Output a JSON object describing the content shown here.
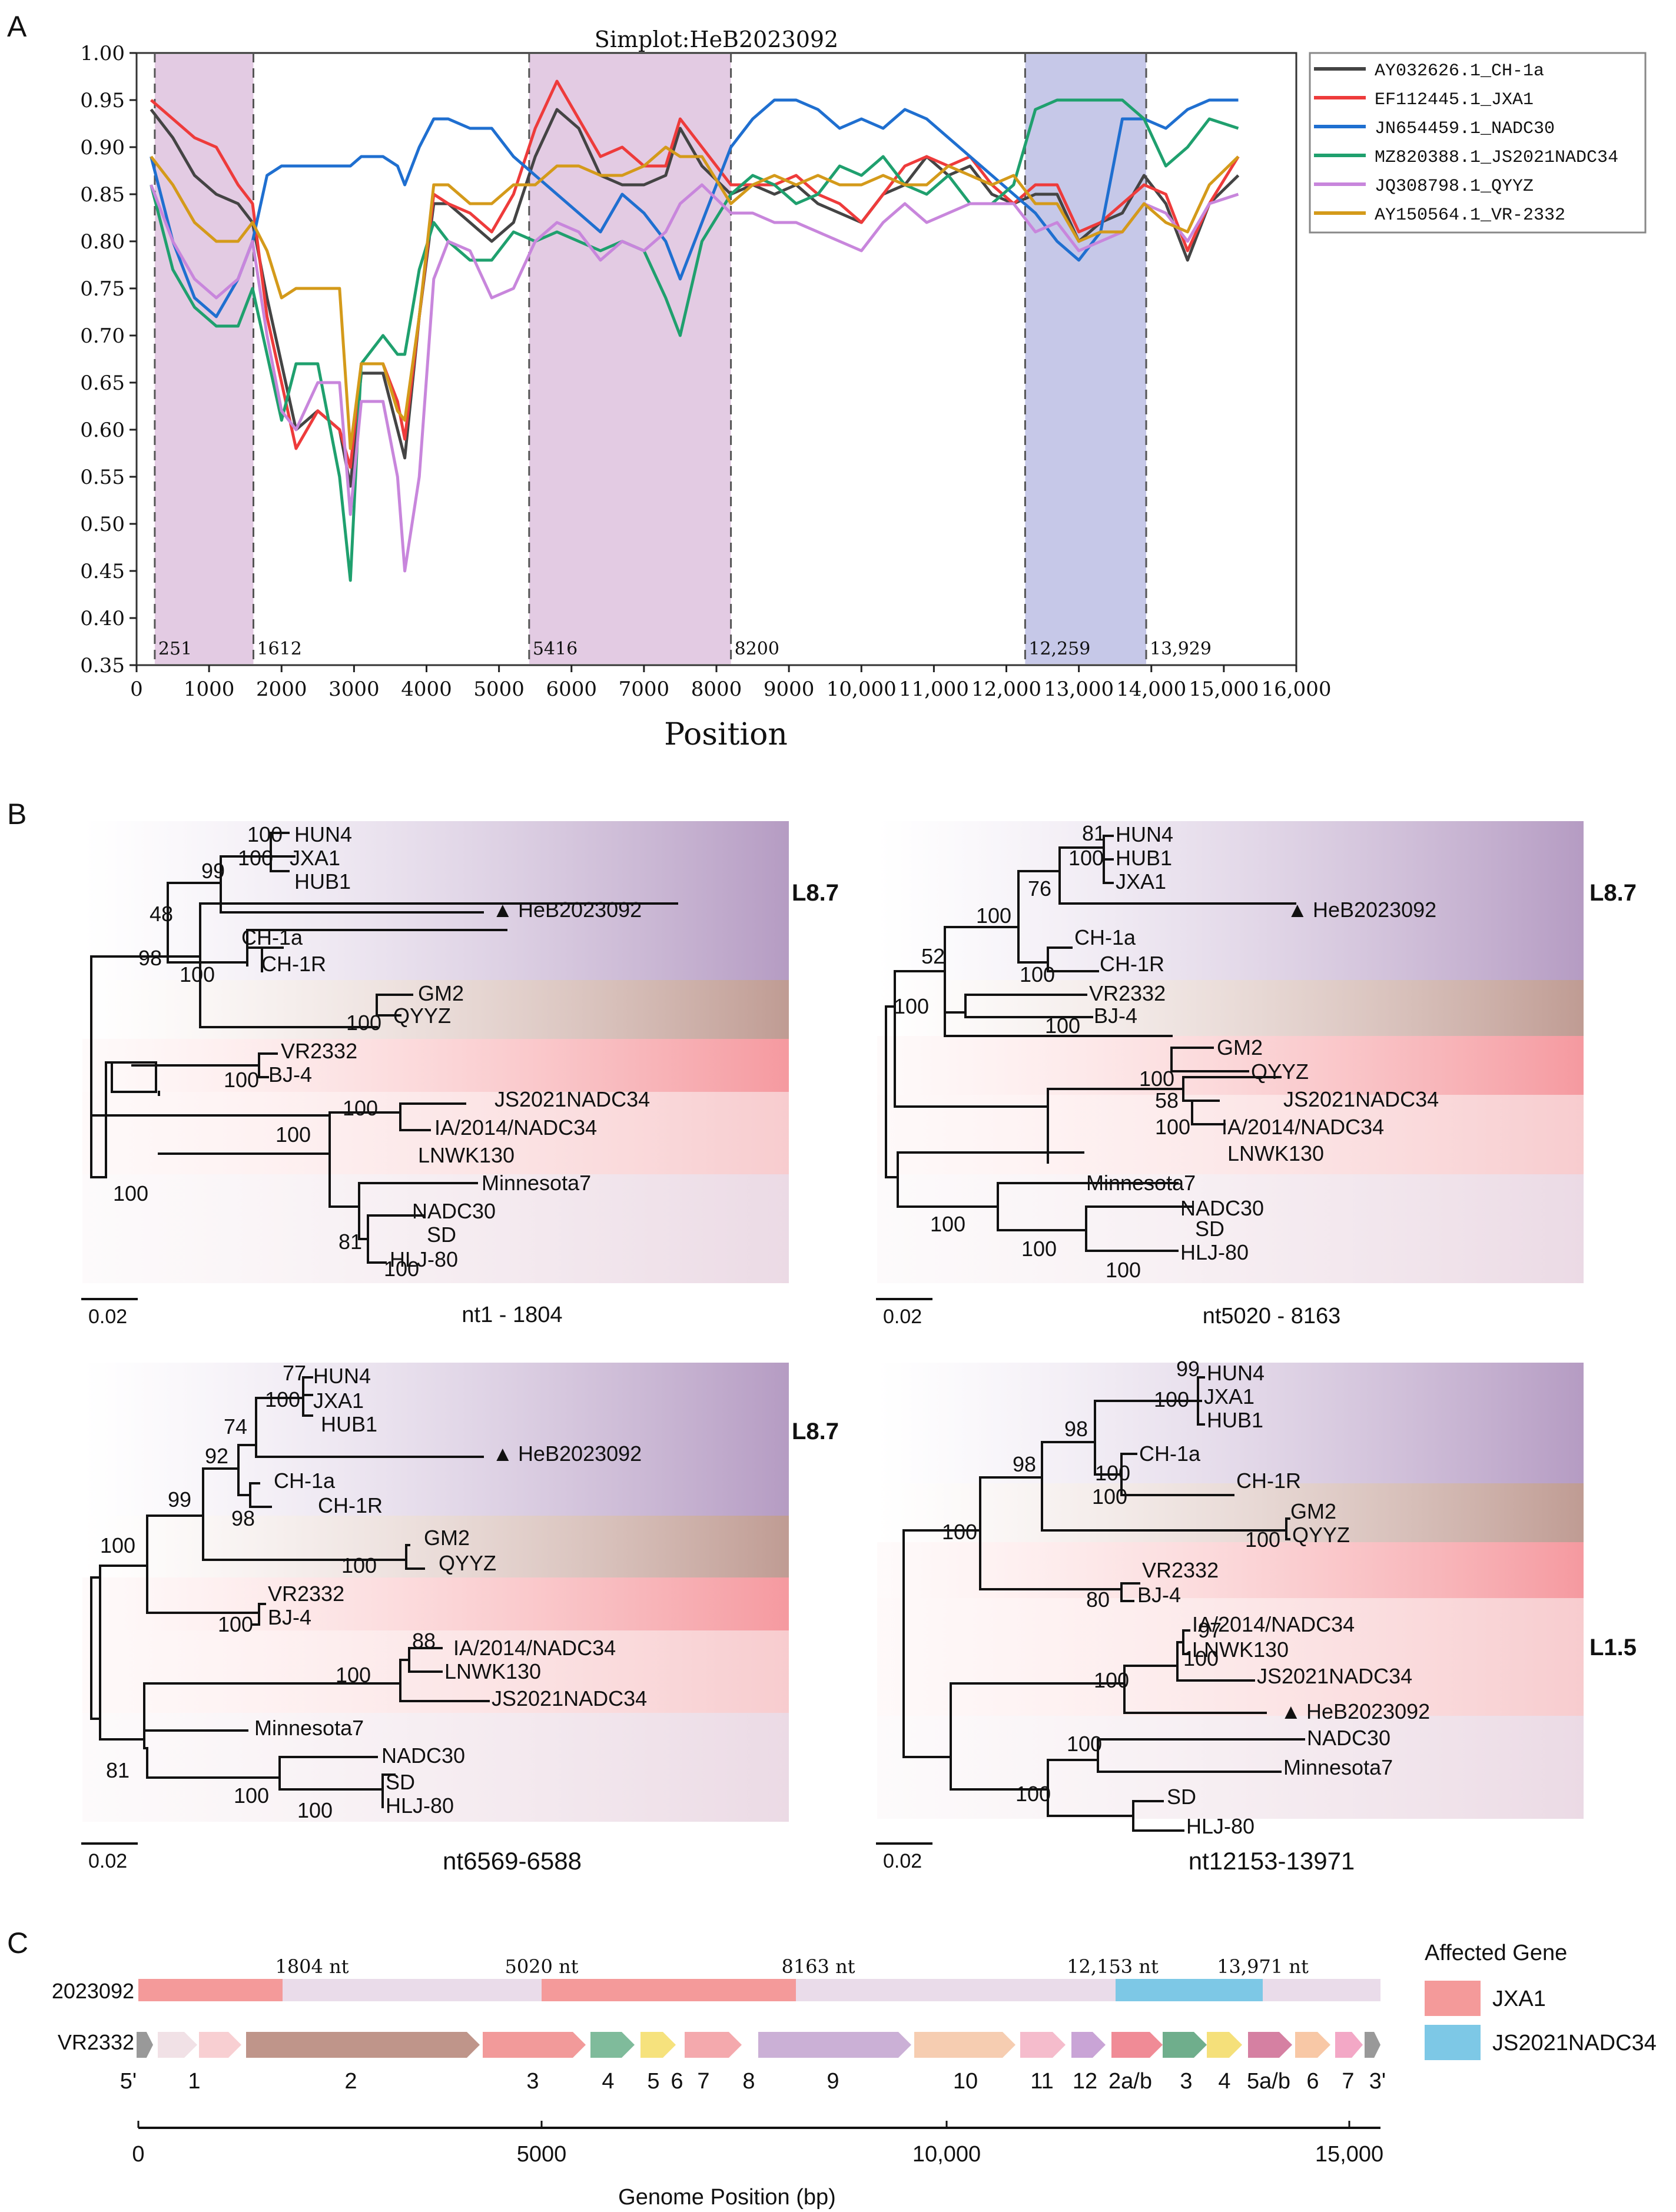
{
  "panel_labels": [
    "A",
    "B",
    "C"
  ],
  "panelA": {
    "chart_data": {
      "type": "line",
      "title": "Simplot:HeB2023092",
      "xlabel": "Position",
      "ylabel": "",
      "xlim": [
        0,
        16000
      ],
      "ylim": [
        0.35,
        1.0
      ],
      "xticks": [
        0,
        1000,
        2000,
        3000,
        4000,
        5000,
        6000,
        7000,
        8000,
        9000,
        10000,
        11000,
        12000,
        13000,
        14000,
        15000,
        16000
      ],
      "xtick_labels": [
        "0",
        "1000",
        "2000",
        "3000",
        "4000",
        "5000",
        "6000",
        "7000",
        "8000",
        "9000",
        "10,000",
        "11,000",
        "12,000",
        "13,000",
        "14,000",
        "15,000",
        "16,000"
      ],
      "yticks": [
        0.35,
        0.4,
        0.45,
        0.5,
        0.55,
        0.6,
        0.65,
        0.7,
        0.75,
        0.8,
        0.85,
        0.9,
        0.95,
        1.0
      ],
      "ytick_labels": [
        "0.35",
        "0.40",
        "0.45",
        "0.50",
        "0.55",
        "0.60",
        "0.65",
        "0.70",
        "0.75",
        "0.80",
        "0.85",
        "0.90",
        "0.95",
        "1.00"
      ],
      "breakpoints": [
        {
          "x": 251,
          "label": "251"
        },
        {
          "x": 1612,
          "label": "1612"
        },
        {
          "x": 5416,
          "label": "5416"
        },
        {
          "x": 8200,
          "label": "8200"
        },
        {
          "x": 12259,
          "label": "12,259"
        },
        {
          "x": 13929,
          "label": "13,929"
        }
      ],
      "shaded_regions": [
        {
          "from": 251,
          "to": 1612,
          "color": "#e3cbe3"
        },
        {
          "from": 5416,
          "to": 8200,
          "color": "#e3cbe3"
        },
        {
          "from": 12259,
          "to": 13929,
          "color": "#c6c8e8"
        }
      ],
      "legend_position": "top-right",
      "x": [
        200,
        500,
        800,
        1100,
        1400,
        1600,
        1800,
        2000,
        2200,
        2500,
        2800,
        2950,
        3100,
        3400,
        3600,
        3700,
        3900,
        4100,
        4300,
        4600,
        4900,
        5200,
        5500,
        5800,
        6100,
        6400,
        6700,
        7000,
        7300,
        7500,
        7800,
        8200,
        8500,
        8800,
        9100,
        9400,
        9700,
        10000,
        10300,
        10600,
        10900,
        11200,
        11500,
        11800,
        12100,
        12400,
        12700,
        13000,
        13300,
        13600,
        13900,
        14200,
        14500,
        14800,
        15200
      ],
      "series": [
        {
          "name": "AY032626.1_CH-1a",
          "color": "#444444",
          "values": [
            0.94,
            0.91,
            0.87,
            0.85,
            0.84,
            0.82,
            0.74,
            0.67,
            0.6,
            0.62,
            0.6,
            0.54,
            0.66,
            0.66,
            0.6,
            0.57,
            0.72,
            0.84,
            0.84,
            0.82,
            0.8,
            0.82,
            0.89,
            0.94,
            0.92,
            0.87,
            0.86,
            0.86,
            0.87,
            0.92,
            0.88,
            0.85,
            0.86,
            0.85,
            0.86,
            0.84,
            0.83,
            0.82,
            0.85,
            0.86,
            0.89,
            0.87,
            0.88,
            0.85,
            0.84,
            0.85,
            0.85,
            0.8,
            0.82,
            0.83,
            0.87,
            0.84,
            0.78,
            0.84,
            0.87
          ]
        },
        {
          "name": "EF112445.1_JXA1",
          "color": "#ee3b3b",
          "values": [
            0.95,
            0.93,
            0.91,
            0.9,
            0.86,
            0.84,
            0.72,
            0.65,
            0.58,
            0.62,
            0.6,
            0.56,
            0.67,
            0.67,
            0.63,
            0.59,
            0.72,
            0.85,
            0.84,
            0.83,
            0.81,
            0.85,
            0.92,
            0.97,
            0.93,
            0.89,
            0.9,
            0.88,
            0.88,
            0.93,
            0.9,
            0.86,
            0.86,
            0.86,
            0.87,
            0.85,
            0.84,
            0.82,
            0.85,
            0.88,
            0.89,
            0.88,
            0.89,
            0.86,
            0.84,
            0.86,
            0.86,
            0.81,
            0.82,
            0.84,
            0.86,
            0.85,
            0.79,
            0.84,
            0.89
          ]
        },
        {
          "name": "JN654459.1_NADC30",
          "color": "#1f6fd0",
          "values": [
            0.89,
            0.8,
            0.74,
            0.72,
            0.76,
            0.8,
            0.87,
            0.88,
            0.88,
            0.88,
            0.88,
            0.88,
            0.89,
            0.89,
            0.88,
            0.86,
            0.9,
            0.93,
            0.93,
            0.92,
            0.92,
            0.89,
            0.87,
            0.85,
            0.83,
            0.81,
            0.85,
            0.83,
            0.8,
            0.76,
            0.82,
            0.9,
            0.93,
            0.95,
            0.95,
            0.94,
            0.92,
            0.93,
            0.92,
            0.94,
            0.93,
            0.91,
            0.89,
            0.87,
            0.85,
            0.83,
            0.8,
            0.78,
            0.81,
            0.93,
            0.93,
            0.92,
            0.94,
            0.95,
            0.95
          ]
        },
        {
          "name": "MZ820388.1_JS2021NADC34",
          "color": "#1fa06e",
          "values": [
            0.86,
            0.77,
            0.73,
            0.71,
            0.71,
            0.75,
            0.68,
            0.61,
            0.67,
            0.67,
            0.55,
            0.44,
            0.67,
            0.7,
            0.68,
            0.68,
            0.77,
            0.82,
            0.8,
            0.78,
            0.78,
            0.81,
            0.8,
            0.81,
            0.8,
            0.79,
            0.8,
            0.79,
            0.74,
            0.7,
            0.8,
            0.85,
            0.87,
            0.86,
            0.84,
            0.85,
            0.88,
            0.87,
            0.89,
            0.86,
            0.85,
            0.87,
            0.84,
            0.84,
            0.86,
            0.94,
            0.95,
            0.95,
            0.95,
            0.95,
            0.93,
            0.88,
            0.9,
            0.93,
            0.92
          ]
        },
        {
          "name": "JQ308798.1_QYYZ",
          "color": "#c886dc",
          "values": [
            0.86,
            0.8,
            0.76,
            0.74,
            0.76,
            0.8,
            0.7,
            0.62,
            0.6,
            0.65,
            0.65,
            0.51,
            0.63,
            0.63,
            0.55,
            0.45,
            0.55,
            0.76,
            0.8,
            0.79,
            0.74,
            0.75,
            0.8,
            0.82,
            0.81,
            0.78,
            0.8,
            0.79,
            0.81,
            0.84,
            0.86,
            0.83,
            0.83,
            0.82,
            0.82,
            0.81,
            0.8,
            0.79,
            0.82,
            0.84,
            0.82,
            0.83,
            0.84,
            0.84,
            0.84,
            0.81,
            0.82,
            0.79,
            0.8,
            0.81,
            0.84,
            0.83,
            0.8,
            0.84,
            0.85
          ]
        },
        {
          "name": "AY150564.1_VR-2332",
          "color": "#d49a1a",
          "values": [
            0.89,
            0.86,
            0.82,
            0.8,
            0.8,
            0.82,
            0.79,
            0.74,
            0.75,
            0.75,
            0.75,
            0.58,
            0.67,
            0.67,
            0.62,
            0.61,
            0.72,
            0.86,
            0.86,
            0.84,
            0.84,
            0.86,
            0.86,
            0.88,
            0.88,
            0.87,
            0.87,
            0.88,
            0.9,
            0.89,
            0.89,
            0.84,
            0.86,
            0.87,
            0.86,
            0.87,
            0.86,
            0.86,
            0.87,
            0.86,
            0.86,
            0.88,
            0.87,
            0.86,
            0.87,
            0.84,
            0.84,
            0.8,
            0.81,
            0.81,
            0.84,
            0.82,
            0.81,
            0.86,
            0.89
          ]
        }
      ]
    }
  },
  "panelB": {
    "trees": [
      {
        "caption": "nt1 - 1804",
        "scale_label": "0.02",
        "lineage_label": "L8.7",
        "bootstraps": [
          "100",
          "100",
          "99",
          "48",
          "98",
          "100",
          "100",
          "100",
          "100",
          "100",
          "100",
          "81",
          "100"
        ],
        "taxa": [
          "HUN4",
          "JXA1",
          "HUB1",
          "HeB2023092",
          "CH-1a",
          "CH-1R",
          "GM2",
          "QYYZ",
          "VR2332",
          "BJ-4",
          "JS2021NADC34",
          "IA/2014/NADC34",
          "LNWK130",
          "Minnesota7",
          "NADC30",
          "SD",
          "HLJ-80"
        ]
      },
      {
        "caption": "nt5020 - 8163",
        "scale_label": "0.02",
        "lineage_label": "L8.7",
        "bootstraps": [
          "81",
          "100",
          "76",
          "100",
          "52",
          "100",
          "100",
          "100",
          "100",
          "58",
          "100",
          "100",
          "100",
          "100"
        ],
        "taxa": [
          "HUN4",
          "HUB1",
          "JXA1",
          "HeB2023092",
          "CH-1a",
          "CH-1R",
          "VR2332",
          "BJ-4",
          "GM2",
          "QYYZ",
          "JS2021NADC34",
          "IA/2014/NADC34",
          "LNWK130",
          "Minnesota7",
          "NADC30",
          "SD",
          "HLJ-80"
        ]
      },
      {
        "caption": "nt6569-6588",
        "scale_label": "0.02",
        "lineage_label": "L8.7",
        "bootstraps": [
          "77",
          "100",
          "74",
          "92",
          "99",
          "98",
          "100",
          "100",
          "100",
          "88",
          "100",
          "81",
          "100",
          "100"
        ],
        "taxa": [
          "HUN4",
          "JXA1",
          "HUB1",
          "HeB2023092",
          "CH-1a",
          "CH-1R",
          "GM2",
          "QYYZ",
          "VR2332",
          "BJ-4",
          "IA/2014/NADC34",
          "LNWK130",
          "JS2021NADC34",
          "Minnesota7",
          "NADC30",
          "SD",
          "HLJ-80"
        ]
      },
      {
        "caption": "nt12153-13971",
        "scale_label": "0.02",
        "lineage_label": "L1.5",
        "bootstraps": [
          "99",
          "100",
          "98",
          "100",
          "98",
          "100",
          "100",
          "100",
          "80",
          "97",
          "100",
          "100",
          "100",
          "100"
        ],
        "taxa": [
          "HUN4",
          "JXA1",
          "HUB1",
          "CH-1a",
          "CH-1R",
          "GM2",
          "QYYZ",
          "VR2332",
          "BJ-4",
          "IA/2014/NADC34",
          "LNWK130",
          "JS2021NADC34",
          "HeB2023092",
          "NADC30",
          "Minnesota7",
          "SD",
          "HLJ-80"
        ]
      }
    ]
  },
  "panelC": {
    "query_label": "2023092",
    "reference_label": "VR2332",
    "breakpoint_labels": [
      "1804 nt",
      "5020 nt",
      "8163 nt",
      "12,153 nt",
      "13,971 nt"
    ],
    "legend_title": "Affected Gene",
    "legend_items": [
      {
        "label": "JXA1",
        "color": "#f49a9a"
      },
      {
        "label": "JS2021NADC34",
        "color": "#7dc8e6"
      }
    ],
    "gene_labels": [
      "5'",
      "1",
      "2",
      "3",
      "4",
      "5",
      "6",
      "7",
      "8",
      "9",
      "10",
      "11",
      "12",
      "2a/b",
      "3",
      "4",
      "5a/b",
      "6",
      "7",
      "3'"
    ],
    "axis_label": "Genome Position (bp)",
    "axis_ticks": [
      "0",
      "5000",
      "10,000",
      "15,000"
    ]
  }
}
